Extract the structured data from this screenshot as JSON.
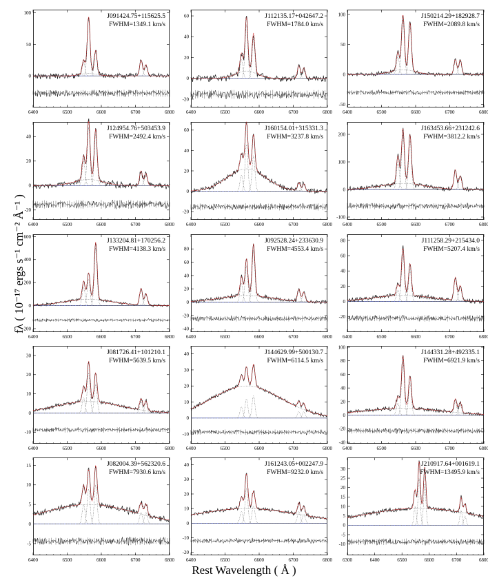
{
  "chart_data": {
    "type": "line",
    "xlabel": "Rest Wavelength ( Å )",
    "ylabel": "fλ ( 10⁻¹⁷ ergs s⁻¹ cm⁻² Å⁻¹ )",
    "panels": [
      {
        "id": "J091424.75+115625.5",
        "label": "J091424.75+115625.5",
        "fwhm_text": "FWHM=1349.1 km/s",
        "fwhm_kms": 1349.1,
        "xlim": [
          6400,
          6800
        ],
        "xticks": [
          6400,
          6500,
          6600,
          6700,
          6800
        ],
        "ylim": [
          -50,
          105
        ],
        "yticks": [
          0,
          50,
          100
        ],
        "peaks": {
          "nii_a": 22,
          "ha": 90,
          "nii_b": 38,
          "sii_a": 25,
          "sii_b": 18
        },
        "broad": {
          "amp": 4,
          "sigma_kms": 1100
        },
        "noise": 4
      },
      {
        "id": "J112135.17+042647.2",
        "label": "J112135.17+042647.2",
        "fwhm_text": "FWHM=1784.0 km/s",
        "fwhm_kms": 1784.0,
        "xlim": [
          6400,
          6800
        ],
        "xticks": [
          6400,
          6500,
          6600,
          6700,
          6800
        ],
        "ylim": [
          -28,
          66
        ],
        "yticks": [
          -20,
          0,
          20,
          40,
          60
        ],
        "peaks": {
          "nii_a": 18,
          "ha": 52,
          "nii_b": 38,
          "sii_a": 12,
          "sii_b": 10
        },
        "broad": {
          "amp": 7,
          "sigma_kms": 1400
        },
        "noise": 3
      },
      {
        "id": "J150214.29+182928.7",
        "label": "J150214.29+182928.7",
        "fwhm_text": "FWHM=2089.8 km/s",
        "fwhm_kms": 2089.8,
        "xlim": [
          6400,
          6800
        ],
        "xticks": [
          6400,
          6500,
          6600,
          6700,
          6800
        ],
        "ylim": [
          -55,
          108
        ],
        "yticks": [
          -50,
          0,
          50,
          100
        ],
        "peaks": {
          "nii_a": 30,
          "ha": 92,
          "nii_b": 80,
          "sii_a": 25,
          "sii_b": 24
        },
        "broad": {
          "amp": 8,
          "sigma_kms": 1600
        },
        "noise": 3
      },
      {
        "id": "J124954.76+503453.9",
        "label": "J124954.76+503453.9",
        "fwhm_text": "FWHM=2492.4 km/s",
        "fwhm_kms": 2492.4,
        "xlim": [
          6400,
          6800
        ],
        "xticks": [
          6400,
          6500,
          6600,
          6700,
          6800
        ],
        "ylim": [
          -28,
          52
        ],
        "yticks": [
          -20,
          0,
          20,
          40
        ],
        "peaks": {
          "nii_a": 20,
          "ha": 48,
          "nii_b": 42,
          "sii_a": 12,
          "sii_b": 10
        },
        "broad": {
          "amp": 5,
          "sigma_kms": 1900
        },
        "noise": 2.5
      },
      {
        "id": "J160154.01+315331.3",
        "label": "J160154.01+315331.3",
        "fwhm_text": "FWHM=3237.8 km/s",
        "fwhm_kms": 3237.8,
        "xlim": [
          6400,
          6800
        ],
        "xticks": [
          6400,
          6500,
          6600,
          6700,
          6800
        ],
        "ylim": [
          -28,
          68
        ],
        "yticks": [
          -20,
          0,
          20,
          40,
          60
        ],
        "peaks": {
          "nii_a": 16,
          "ha": 46,
          "nii_b": 35,
          "sii_a": 8,
          "sii_b": 7
        },
        "broad": {
          "amp": 22,
          "sigma_kms": 2600
        },
        "noise": 2.5
      },
      {
        "id": "J163453.66+231242.6",
        "label": "J163453.66+231242.6",
        "fwhm_text": "FWHM=3812.2 km/s",
        "fwhm_kms": 3812.2,
        "xlim": [
          6400,
          6800
        ],
        "xticks": [
          6400,
          6500,
          6600,
          6700,
          6800
        ],
        "ylim": [
          -110,
          245
        ],
        "yticks": [
          -100,
          0,
          100,
          200
        ],
        "peaks": {
          "nii_a": 100,
          "ha": 200,
          "nii_b": 178,
          "sii_a": 70,
          "sii_b": 48
        },
        "broad": {
          "amp": 22,
          "sigma_kms": 2900
        },
        "noise": 8
      },
      {
        "id": "J133204.81+170256.2",
        "label": "J133204.81+170256.2",
        "fwhm_text": "FWHM=4138.3 km/s",
        "fwhm_kms": 4138.3,
        "xlim": [
          6400,
          6800
        ],
        "xticks": [
          6400,
          6500,
          6600,
          6700,
          6800
        ],
        "ylim": [
          -230,
          620
        ],
        "yticks": [
          -200,
          0,
          200,
          400,
          600
        ],
        "peaks": {
          "nii_a": 160,
          "ha": 230,
          "nii_b": 500,
          "sii_a": 145,
          "sii_b": 100
        },
        "broad": {
          "amp": 55,
          "sigma_kms": 3200
        },
        "noise": 10
      },
      {
        "id": "J092528.24+233630.9",
        "label": "J092528.24+233630.9",
        "fwhm_text": "FWHM=4553.4 km/s",
        "fwhm_kms": 4553.4,
        "xlim": [
          6400,
          6800
        ],
        "xticks": [
          6400,
          6500,
          6600,
          6700,
          6800
        ],
        "ylim": [
          -45,
          102
        ],
        "yticks": [
          -40,
          -20,
          0,
          20,
          40,
          60,
          80
        ],
        "peaks": {
          "nii_a": 28,
          "ha": 55,
          "nii_b": 78,
          "sii_a": 18,
          "sii_b": 14
        },
        "broad": {
          "amp": 10,
          "sigma_kms": 3500
        },
        "noise": 3
      },
      {
        "id": "J111258.29+215434.0",
        "label": "J111258.29+215434.0",
        "fwhm_text": "FWHM=5207.4 km/s",
        "fwhm_kms": 5207.4,
        "xlim": [
          6400,
          6800
        ],
        "xticks": [
          6400,
          6500,
          6600,
          6700,
          6800
        ],
        "ylim": [
          -40,
          88
        ],
        "yticks": [
          -20,
          0,
          20,
          40,
          60,
          80
        ],
        "peaks": {
          "nii_a": 15,
          "ha": 62,
          "nii_b": 42,
          "sii_a": 30,
          "sii_b": 20
        },
        "broad": {
          "amp": 8,
          "sigma_kms": 4000
        },
        "noise": 3
      },
      {
        "id": "J081726.41+101210.1",
        "label": "J081726.41+101210.1",
        "fwhm_text": "FWHM=5639.5 km/s",
        "fwhm_kms": 5639.5,
        "xlim": [
          6400,
          6800
        ],
        "xticks": [
          6400,
          6500,
          6600,
          6700,
          6800
        ],
        "ylim": [
          -16,
          35
        ],
        "yticks": [
          -10,
          0,
          10,
          20,
          30
        ],
        "peaks": {
          "nii_a": 8,
          "ha": 21,
          "nii_b": 15,
          "sii_a": 6,
          "sii_b": 5
        },
        "broad": {
          "amp": 6,
          "sigma_kms": 4300
        },
        "noise": 1
      },
      {
        "id": "J144629.99+500130.7",
        "label": "J144629.99+500130.7",
        "fwhm_text": "FWHM=6114.5 km/s",
        "fwhm_kms": 6114.5,
        "xlim": [
          6400,
          6800
        ],
        "xticks": [
          6400,
          6500,
          6600,
          6700,
          6800
        ],
        "ylim": [
          -16,
          45
        ],
        "yticks": [
          -10,
          0,
          10,
          20,
          30,
          40
        ],
        "peaks": {
          "nii_a": 7,
          "ha": 12,
          "nii_b": 14,
          "sii_a": 4,
          "sii_b": 4
        },
        "broad": {
          "amp": 20,
          "sigma_kms": 4700
        },
        "noise": 1.2
      },
      {
        "id": "J144331.28+492335.1",
        "label": "J144331.28+492335.1",
        "fwhm_text": "FWHM=6921.9 km/s",
        "fwhm_kms": 6921.9,
        "xlim": [
          6400,
          6800
        ],
        "xticks": [
          6400,
          6500,
          6600,
          6700,
          6800
        ],
        "ylim": [
          -42,
          102
        ],
        "yticks": [
          -40,
          -20,
          0,
          20,
          40,
          60,
          80,
          100
        ],
        "peaks": {
          "nii_a": 18,
          "ha": 78,
          "nii_b": 48,
          "sii_a": 20,
          "sii_b": 15
        },
        "broad": {
          "amp": 10,
          "sigma_kms": 5300
        },
        "noise": 3
      },
      {
        "id": "J082004.39+562320.6",
        "label": "J082004.39+562320.6",
        "fwhm_text": "FWHM=7930.6 km/s",
        "fwhm_kms": 7930.6,
        "xlim": [
          6400,
          6800
        ],
        "xticks": [
          6400,
          6500,
          6600,
          6700,
          6800
        ],
        "ylim": [
          -8,
          17
        ],
        "yticks": [
          -5,
          0,
          5,
          10,
          15
        ],
        "peaks": {
          "nii_a": 5,
          "ha": 9,
          "nii_b": 10,
          "sii_a": 3,
          "sii_b": 3
        },
        "broad": {
          "amp": 5,
          "sigma_kms": 6000
        },
        "noise": 0.7
      },
      {
        "id": "J161243.05+002247.9",
        "label": "J161243.05+002247.9",
        "fwhm_text": "FWHM=9232.0 km/s",
        "fwhm_kms": 9232.0,
        "xlim": [
          6400,
          6800
        ],
        "xticks": [
          6400,
          6500,
          6600,
          6700,
          6800
        ],
        "ylim": [
          -22,
          45
        ],
        "yticks": [
          -20,
          -10,
          0,
          10,
          20,
          30,
          40
        ],
        "peaks": {
          "nii_a": 8,
          "ha": 24,
          "nii_b": 12,
          "sii_a": 8,
          "sii_b": 6
        },
        "broad": {
          "amp": 10,
          "sigma_kms": 7000
        },
        "noise": 1.2
      },
      {
        "id": "J210917.64+001619.1",
        "label": "J210917.64+001619.1",
        "fwhm_text": "FWHM=13495.9 km/s",
        "fwhm_kms": 13495.9,
        "xlim": [
          6300,
          6800
        ],
        "xticks": [
          6300,
          6400,
          6500,
          6600,
          6700,
          6800
        ],
        "ylim": [
          -16,
          36
        ],
        "yticks": [
          -10,
          -5,
          0,
          5,
          10,
          15,
          20,
          25,
          30
        ],
        "peaks": {
          "nii_a": 10,
          "ha": 25,
          "nii_b": 22,
          "sii_a": 8,
          "sii_b": 5
        },
        "broad": {
          "amp": 9,
          "sigma_kms": 9500
        },
        "noise": 1.2
      }
    ]
  },
  "colors": {
    "data": "#1a1a1a",
    "model": "#cc1f1f",
    "components": "#555555",
    "zero_line": "#3a4fd6",
    "frame": "#000000"
  }
}
